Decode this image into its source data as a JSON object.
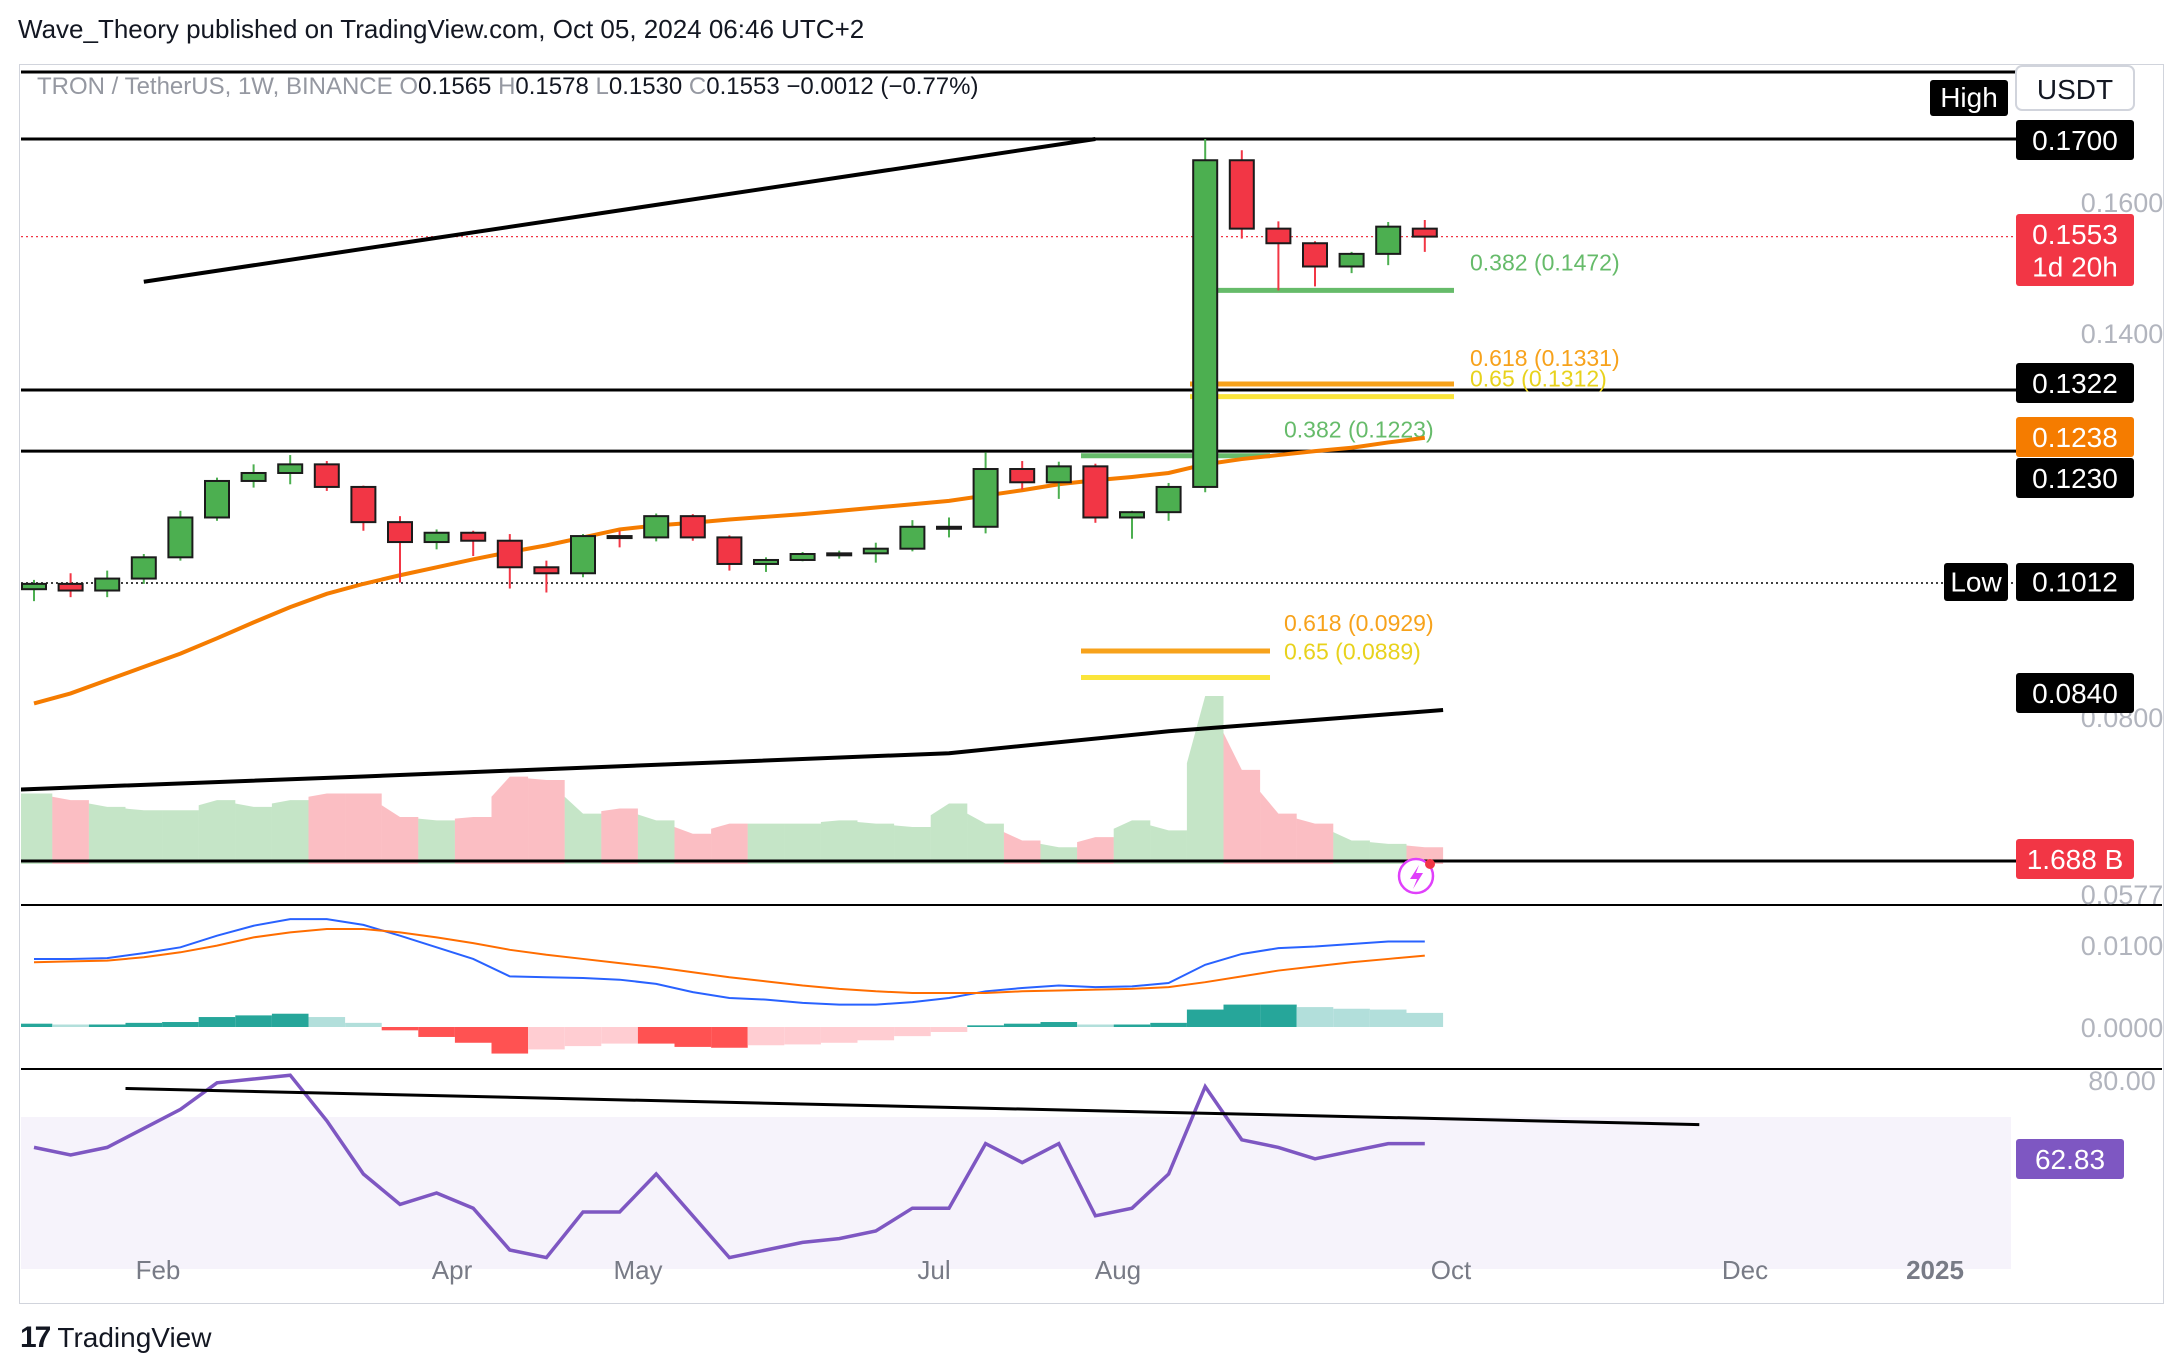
{
  "header": {
    "text": "Wave_Theory published on TradingView.com, Oct 05, 2024 06:46 UTC+2"
  },
  "legend": {
    "symbol": "TRON / TetherUS, 1W, BINANCE",
    "o_label": "O",
    "o_value": "0.1565",
    "h_label": "H",
    "h_value": "0.1578",
    "l_label": "L",
    "l_value": "0.1530",
    "c_label": "C",
    "c_value": "0.1553",
    "change": "−0.0012 (−0.77%)"
  },
  "currency_label": "USDT",
  "colors": {
    "up": "#4caf50",
    "down": "#f23645",
    "ema": "#f57c00",
    "fib_orange": "#f7a21b",
    "fib_yellow": "#fbe53a",
    "fib_green": "#66bb6a",
    "macd": "#2962ff",
    "signal": "#ff6d00",
    "rsi": "#7e57c2"
  },
  "chart_data": [
    {
      "type": "candlestick",
      "title": "TRON / TetherUS, 1W, BINANCE",
      "x_ticks": [
        "Feb",
        "Apr",
        "May",
        "Jul",
        "Aug",
        "Oct",
        "Dec",
        "2025"
      ],
      "y_ticks": [
        "0.1700",
        "0.1600",
        "0.1400",
        "0.0800",
        "0.0577"
      ],
      "candles": [
        {
          "o": 0.1022,
          "h": 0.1036,
          "l": 0.1004,
          "c": 0.103
        },
        {
          "o": 0.103,
          "h": 0.1046,
          "l": 0.101,
          "c": 0.102
        },
        {
          "o": 0.102,
          "h": 0.105,
          "l": 0.101,
          "c": 0.1038
        },
        {
          "o": 0.1038,
          "h": 0.1075,
          "l": 0.103,
          "c": 0.107
        },
        {
          "o": 0.107,
          "h": 0.114,
          "l": 0.1065,
          "c": 0.113
        },
        {
          "o": 0.113,
          "h": 0.119,
          "l": 0.1125,
          "c": 0.1185
        },
        {
          "o": 0.1185,
          "h": 0.121,
          "l": 0.1175,
          "c": 0.1197
        },
        {
          "o": 0.1197,
          "h": 0.1224,
          "l": 0.118,
          "c": 0.121
        },
        {
          "o": 0.121,
          "h": 0.1215,
          "l": 0.117,
          "c": 0.1176
        },
        {
          "o": 0.1176,
          "h": 0.1178,
          "l": 0.111,
          "c": 0.1123
        },
        {
          "o": 0.1123,
          "h": 0.1132,
          "l": 0.1032,
          "c": 0.1093
        },
        {
          "o": 0.1093,
          "h": 0.1112,
          "l": 0.1082,
          "c": 0.1107
        },
        {
          "o": 0.1107,
          "h": 0.111,
          "l": 0.1072,
          "c": 0.1095
        },
        {
          "o": 0.1095,
          "h": 0.1105,
          "l": 0.1023,
          "c": 0.1055
        },
        {
          "o": 0.1055,
          "h": 0.1065,
          "l": 0.1017,
          "c": 0.1046
        },
        {
          "o": 0.1046,
          "h": 0.1105,
          "l": 0.104,
          "c": 0.1102
        },
        {
          "o": 0.1102,
          "h": 0.111,
          "l": 0.1085,
          "c": 0.11
        },
        {
          "o": 0.11,
          "h": 0.1136,
          "l": 0.1094,
          "c": 0.1132
        },
        {
          "o": 0.1132,
          "h": 0.1135,
          "l": 0.1095,
          "c": 0.11
        },
        {
          "o": 0.11,
          "h": 0.1103,
          "l": 0.105,
          "c": 0.106
        },
        {
          "o": 0.106,
          "h": 0.107,
          "l": 0.1048,
          "c": 0.1066
        },
        {
          "o": 0.1066,
          "h": 0.1078,
          "l": 0.1064,
          "c": 0.1075
        },
        {
          "o": 0.1075,
          "h": 0.108,
          "l": 0.1068,
          "c": 0.1076
        },
        {
          "o": 0.1076,
          "h": 0.1092,
          "l": 0.1062,
          "c": 0.1083
        },
        {
          "o": 0.1083,
          "h": 0.1126,
          "l": 0.1079,
          "c": 0.1116
        },
        {
          "o": 0.1116,
          "h": 0.113,
          "l": 0.11,
          "c": 0.1116
        },
        {
          "o": 0.1116,
          "h": 0.1228,
          "l": 0.1106,
          "c": 0.1203
        },
        {
          "o": 0.1203,
          "h": 0.1215,
          "l": 0.1172,
          "c": 0.1183
        },
        {
          "o": 0.1183,
          "h": 0.1214,
          "l": 0.1158,
          "c": 0.1207
        },
        {
          "o": 0.1207,
          "h": 0.1211,
          "l": 0.1122,
          "c": 0.113
        },
        {
          "o": 0.113,
          "h": 0.114,
          "l": 0.1098,
          "c": 0.1138
        },
        {
          "o": 0.1138,
          "h": 0.1182,
          "l": 0.1125,
          "c": 0.1176
        },
        {
          "o": 0.1176,
          "h": 0.17,
          "l": 0.1168,
          "c": 0.1668
        },
        {
          "o": 0.1668,
          "h": 0.1683,
          "l": 0.155,
          "c": 0.1565
        },
        {
          "o": 0.1565,
          "h": 0.1576,
          "l": 0.1472,
          "c": 0.1543
        },
        {
          "o": 0.1543,
          "h": 0.1546,
          "l": 0.1478,
          "c": 0.1508
        },
        {
          "o": 0.1508,
          "h": 0.153,
          "l": 0.1498,
          "c": 0.1527
        },
        {
          "o": 0.1527,
          "h": 0.1575,
          "l": 0.151,
          "c": 0.1568
        },
        {
          "o": 0.1565,
          "h": 0.1578,
          "l": 0.153,
          "c": 0.1553
        }
      ],
      "ema": [
        0.085,
        0.0865,
        0.0885,
        0.0905,
        0.0925,
        0.0948,
        0.0972,
        0.0995,
        0.1015,
        0.103,
        0.1043,
        0.1055,
        0.1067,
        0.1078,
        0.1088,
        0.11,
        0.1112,
        0.1118,
        0.1122,
        0.1127,
        0.1131,
        0.1135,
        0.114,
        0.1145,
        0.115,
        0.1155,
        0.1163,
        0.1171,
        0.118,
        0.1186,
        0.1191,
        0.1197,
        0.121,
        0.1218,
        0.1224,
        0.123,
        0.1235,
        0.1243,
        0.125
      ],
      "upper_trendline": [
        [
          3,
          0.1485
        ],
        [
          29,
          0.17
        ]
      ],
      "lower_trendline": [
        [
          -0.5,
          0.072
        ],
        [
          9,
          0.074
        ],
        [
          25,
          0.0775
        ],
        [
          31,
          0.0808
        ],
        [
          38.5,
          0.084
        ]
      ],
      "horizontal_levels": [
        "0.1700",
        "0.1322",
        "0.1230"
      ],
      "high_level": "0.1700",
      "low_level": "0.1012",
      "current_price": "0.1553",
      "countdown": "1d 20h",
      "ema_value": "0.1238",
      "lower_trend_value": "0.0840",
      "fib_levels": [
        {
          "label": "0.382 (0.1472)",
          "value": 0.1472,
          "color": "green"
        },
        {
          "label": "0.618 (0.1331)",
          "value": 0.1331,
          "color": "orange"
        },
        {
          "label": "0.65 (0.1312)",
          "value": 0.1312,
          "color": "yellow"
        },
        {
          "label": "0.382 (0.1223)",
          "value": 0.1223,
          "color": "green"
        },
        {
          "label": "0.618 (0.0929)",
          "value": 0.0929,
          "color": "orange"
        },
        {
          "label": "0.65 (0.0889)",
          "value": 0.0889,
          "color": "yellow"
        }
      ],
      "high_tag": "High",
      "low_tag": "Low"
    },
    {
      "type": "area",
      "name": "Volume",
      "last_value": "1.688 B",
      "values": [
        0.42,
        0.38,
        0.34,
        0.32,
        0.32,
        0.38,
        0.34,
        0.38,
        0.42,
        0.42,
        0.28,
        0.26,
        0.28,
        0.52,
        0.5,
        0.3,
        0.33,
        0.26,
        0.18,
        0.24,
        0.24,
        0.24,
        0.26,
        0.24,
        0.22,
        0.36,
        0.24,
        0.14,
        0.1,
        0.16,
        0.26,
        0.2,
        1.0,
        0.56,
        0.3,
        0.24,
        0.14,
        0.12,
        0.1
      ]
    },
    {
      "type": "line",
      "name": "MACD",
      "y_ticks": [
        "0.0100",
        "0.0000"
      ],
      "macd": [
        0.0082,
        0.0082,
        0.0083,
        0.0089,
        0.0096,
        0.011,
        0.0122,
        0.013,
        0.013,
        0.0123,
        0.011,
        0.0096,
        0.0082,
        0.0061,
        0.006,
        0.0059,
        0.0057,
        0.0052,
        0.0042,
        0.0035,
        0.0033,
        0.0029,
        0.0027,
        0.0027,
        0.003,
        0.0035,
        0.0043,
        0.0047,
        0.005,
        0.0048,
        0.0049,
        0.0053,
        0.0075,
        0.0088,
        0.0095,
        0.0097,
        0.01,
        0.0103,
        0.0103
      ],
      "signal": [
        0.0078,
        0.0079,
        0.008,
        0.0084,
        0.009,
        0.0098,
        0.0108,
        0.0114,
        0.0118,
        0.0118,
        0.0114,
        0.0108,
        0.0101,
        0.0093,
        0.0087,
        0.0082,
        0.0077,
        0.0072,
        0.0066,
        0.006,
        0.0055,
        0.005,
        0.0046,
        0.0043,
        0.0041,
        0.0041,
        0.0041,
        0.0043,
        0.0044,
        0.0045,
        0.0046,
        0.0048,
        0.0054,
        0.0061,
        0.0068,
        0.0073,
        0.0078,
        0.0082,
        0.0086
      ],
      "histogram": [
        0.0004,
        0.0003,
        0.0003,
        0.0005,
        0.0006,
        0.0012,
        0.0014,
        0.0016,
        0.0012,
        0.0005,
        -0.0004,
        -0.0012,
        -0.0019,
        -0.0032,
        -0.0027,
        -0.0023,
        -0.002,
        -0.002,
        -0.0024,
        -0.0025,
        -0.0022,
        -0.0021,
        -0.0019,
        -0.0016,
        -0.0011,
        -0.0006,
        0.0002,
        0.0004,
        0.0006,
        0.0003,
        0.0003,
        0.0005,
        0.0021,
        0.0027,
        0.0027,
        0.0024,
        0.0022,
        0.0021,
        0.0017
      ]
    },
    {
      "type": "line",
      "name": "RSI",
      "y_ticks": [
        "80.00"
      ],
      "last_value": "62.83",
      "band": [
        70,
        30
      ],
      "values": [
        62,
        60,
        62,
        67,
        72,
        79,
        80,
        81,
        69,
        55,
        47,
        50,
        46,
        35,
        33,
        45,
        45,
        55,
        44,
        33,
        35,
        37,
        38,
        40,
        46,
        46,
        63,
        58,
        63,
        44,
        46,
        55,
        78,
        64,
        62,
        59,
        61,
        63,
        63
      ],
      "trendline": [
        [
          2.5,
          77.5
        ],
        [
          45.5,
          68
        ]
      ]
    }
  ]
}
